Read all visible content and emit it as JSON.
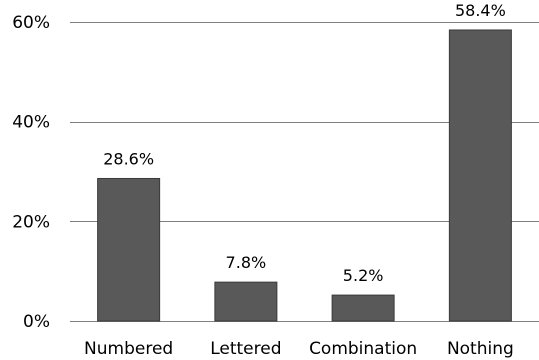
{
  "chart_data": {
    "type": "bar",
    "categories": [
      "Numbered",
      "Lettered",
      "Combination",
      "Nothing"
    ],
    "values": [
      28.6,
      7.8,
      5.2,
      58.4
    ],
    "data_labels": [
      "28.6%",
      "7.8%",
      "5.2%",
      "58.4%"
    ],
    "title": "",
    "xlabel": "",
    "ylabel": "",
    "ylim": [
      0,
      60
    ],
    "yticks": [
      0,
      20,
      40,
      60
    ],
    "ytick_labels": [
      "0%",
      "20%",
      "40%",
      "60%"
    ],
    "grid": true,
    "legend": "none",
    "bar_color": "#595959"
  }
}
